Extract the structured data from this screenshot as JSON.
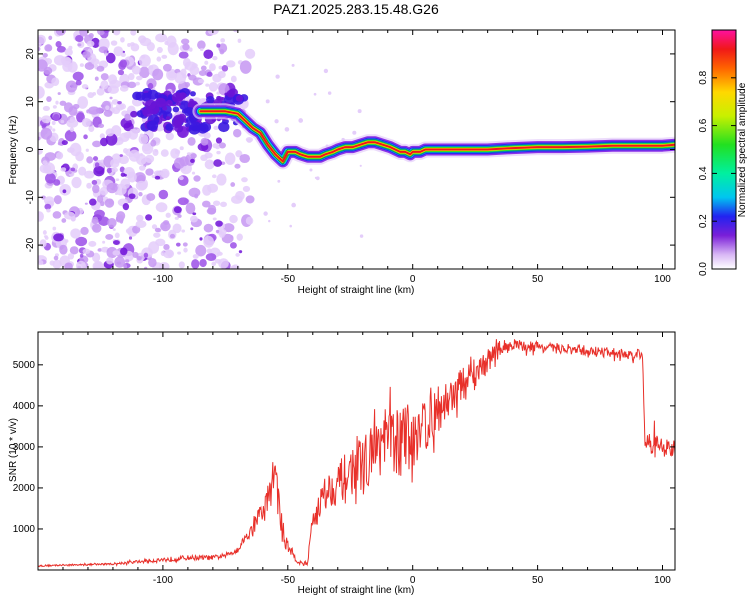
{
  "title": "PAZ1.2025.283.15.48.G26",
  "chart_data": [
    {
      "type": "heatmap",
      "xlabel": "Height of straight line (km)",
      "ylabel": "Frequency (Hz)",
      "xlim": [
        -150,
        105
      ],
      "ylim": [
        -25,
        25
      ],
      "x_ticks": [
        -100,
        -50,
        0,
        50,
        100
      ],
      "y_ticks": [
        -20,
        -10,
        0,
        10,
        20
      ],
      "colorbar": {
        "label": "Normalized spectral amplitude",
        "range": [
          0.0,
          1.0
        ],
        "ticks": [
          0.0,
          0.2,
          0.4,
          0.6,
          0.8
        ]
      },
      "ridge": {
        "x": [
          -85,
          -75,
          -70,
          -67,
          -64,
          -61,
          -58,
          -55,
          -52,
          -50,
          -47,
          -45,
          -42,
          -40,
          -37,
          -35,
          -32,
          -30,
          -27,
          -24,
          -21,
          -18,
          -15,
          -12,
          -9,
          -7,
          -5,
          -3,
          -1,
          0,
          3,
          5,
          8,
          10,
          15,
          20,
          30,
          40,
          50,
          60,
          70,
          80,
          90,
          95,
          100,
          105
        ],
        "y": [
          8,
          8,
          7.5,
          6,
          4.5,
          3.5,
          1,
          -1,
          -2.5,
          -0.5,
          -0.5,
          -1,
          -1.5,
          -1.5,
          -1.5,
          -1,
          -0.5,
          0,
          0.5,
          0.5,
          1,
          1.5,
          1.5,
          1,
          0.5,
          0,
          -0.5,
          -0.5,
          -1,
          -0.5,
          -0.5,
          0,
          0,
          0,
          0,
          0,
          0,
          0.3,
          0.5,
          0.5,
          0.6,
          0.8,
          0.8,
          0.8,
          0.8,
          1
        ]
      }
    },
    {
      "type": "line",
      "xlabel": "Height of straight line (km)",
      "ylabel": "SNR (10 * v/v)",
      "xlim": [
        -150,
        105
      ],
      "ylim": [
        0,
        5800
      ],
      "x_ticks": [
        -100,
        -50,
        0,
        50,
        100
      ],
      "y_ticks": [
        1000,
        2000,
        3000,
        4000,
        5000
      ],
      "series": [
        {
          "name": "SNR",
          "color": "#e8302a",
          "x": [
            -150,
            -140,
            -130,
            -120,
            -110,
            -100,
            -90,
            -80,
            -75,
            -70,
            -67,
            -64,
            -62,
            -60,
            -58,
            -56,
            -55,
            -53,
            -52,
            -50,
            -48,
            -46,
            -44,
            -42,
            -40,
            -38,
            -35,
            -30,
            -25,
            -20,
            -15,
            -10,
            -5,
            0,
            5,
            10,
            15,
            20,
            25,
            30,
            35,
            40,
            45,
            50,
            55,
            60,
            65,
            70,
            75,
            80,
            85,
            90,
            92,
            93,
            95,
            98,
            100,
            103,
            105
          ],
          "values": [
            100,
            120,
            130,
            150,
            200,
            250,
            300,
            300,
            350,
            500,
            800,
            1000,
            1300,
            1400,
            1700,
            2200,
            2500,
            1200,
            900,
            600,
            400,
            200,
            150,
            180,
            1300,
            1500,
            1900,
            2100,
            2400,
            2600,
            2900,
            3200,
            3100,
            3300,
            3600,
            3900,
            4200,
            4500,
            4800,
            5100,
            5400,
            5500,
            5450,
            5450,
            5400,
            5400,
            5350,
            5350,
            5300,
            5300,
            5250,
            5250,
            5250,
            3150,
            3100,
            3000,
            3050,
            3000,
            2950
          ],
          "noise": [
            20,
            20,
            20,
            25,
            40,
            60,
            60,
            60,
            60,
            80,
            100,
            150,
            200,
            300,
            400,
            500,
            600,
            400,
            300,
            200,
            100,
            60,
            50,
            50,
            350,
            400,
            450,
            500,
            600,
            650,
            700,
            800,
            900,
            800,
            800,
            600,
            500,
            450,
            400,
            300,
            200,
            150,
            140,
            130,
            130,
            130,
            130,
            130,
            130,
            130,
            130,
            130,
            130,
            220,
            300,
            300,
            300,
            250,
            200
          ]
        }
      ]
    }
  ]
}
